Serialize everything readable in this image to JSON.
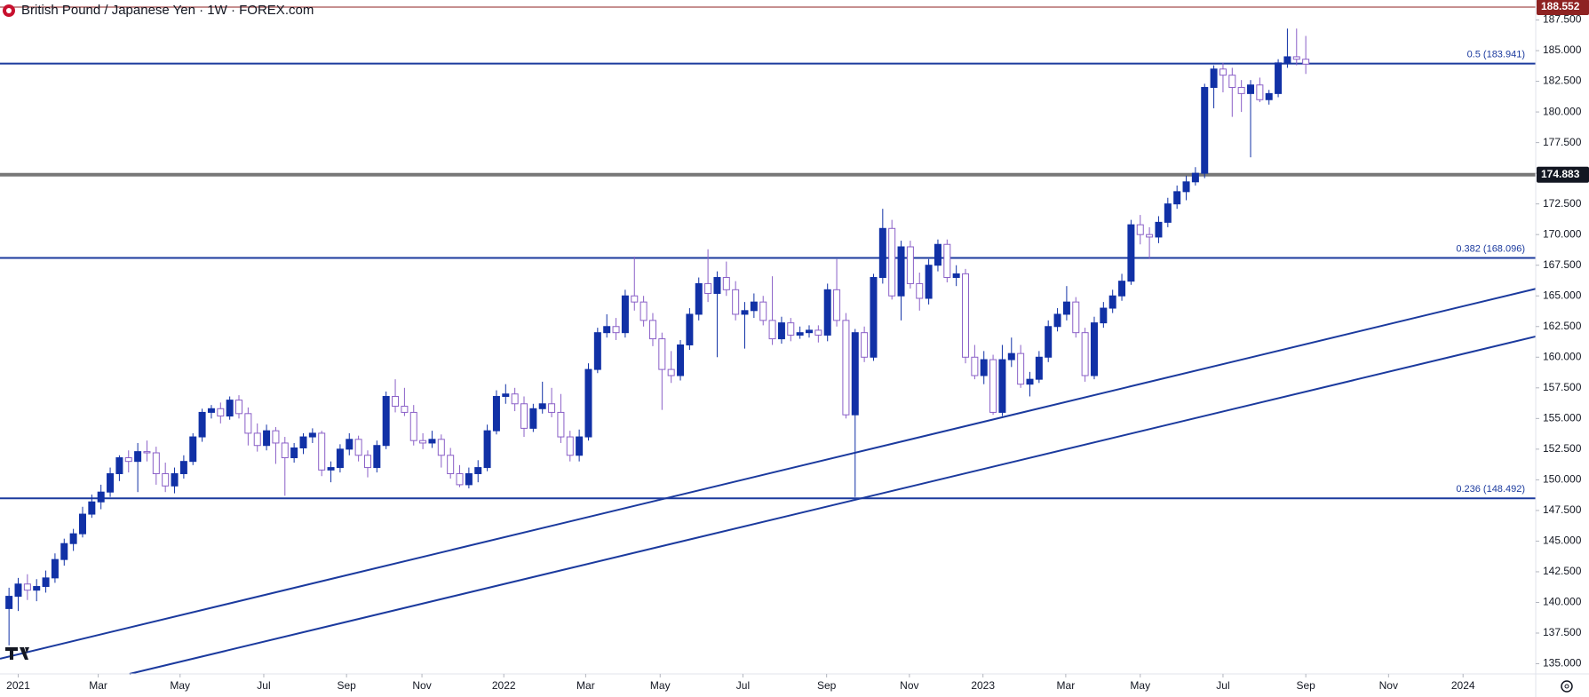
{
  "chart_data": {
    "type": "candlestick",
    "title": "British Pound / Japanese Yen · 1W · FOREX.com",
    "up_color": "#1131a6",
    "down_color": "#ffffff",
    "down_stroke": "#8a5fc7",
    "line_color": "#1b3a9e",
    "xlim": [
      -0.98,
      166.0
    ],
    "xticks": [
      {
        "value": 1,
        "label": "2021"
      },
      {
        "value": 9.7,
        "label": "Mar"
      },
      {
        "value": 18.6,
        "label": "May"
      },
      {
        "value": 27.7,
        "label": "Jul"
      },
      {
        "value": 36.7,
        "label": "Sep"
      },
      {
        "value": 44.9,
        "label": "Nov"
      },
      {
        "value": 53.8,
        "label": "2022"
      },
      {
        "value": 62.7,
        "label": "Mar"
      },
      {
        "value": 70.8,
        "label": "May"
      },
      {
        "value": 79.8,
        "label": "Jul"
      },
      {
        "value": 88.9,
        "label": "Sep"
      },
      {
        "value": 97.9,
        "label": "Nov"
      },
      {
        "value": 105.9,
        "label": "2023"
      },
      {
        "value": 114.9,
        "label": "Mar"
      },
      {
        "value": 123,
        "label": "May"
      },
      {
        "value": 132,
        "label": "Jul"
      },
      {
        "value": 141,
        "label": "Sep"
      },
      {
        "value": 150,
        "label": "Nov"
      },
      {
        "value": 158.1,
        "label": "2024"
      }
    ],
    "ylim": [
      134.17,
      189.13
    ],
    "yticks": [
      {
        "value": 135,
        "label": "135.000"
      },
      {
        "value": 137.5,
        "label": "137.500"
      },
      {
        "value": 140,
        "label": "140.000"
      },
      {
        "value": 142.5,
        "label": "142.500"
      },
      {
        "value": 145,
        "label": "145.000"
      },
      {
        "value": 147.5,
        "label": "147.500"
      },
      {
        "value": 150,
        "label": "150.000"
      },
      {
        "value": 152.5,
        "label": "152.500"
      },
      {
        "value": 155,
        "label": "155.000"
      },
      {
        "value": 157.5,
        "label": "157.500"
      },
      {
        "value": 160,
        "label": "160.000"
      },
      {
        "value": 162.5,
        "label": "162.500"
      },
      {
        "value": 165,
        "label": "165.000"
      },
      {
        "value": 167.5,
        "label": "167.500"
      },
      {
        "value": 170,
        "label": "170.000"
      },
      {
        "value": 172.5,
        "label": "172.500"
      },
      {
        "value": 175,
        "label": "175.000"
      },
      {
        "value": 177.5,
        "label": "177.500"
      },
      {
        "value": 180,
        "label": "180.000"
      },
      {
        "value": 182.5,
        "label": "182.500"
      },
      {
        "value": 185,
        "label": "185.000"
      },
      {
        "value": 187.5,
        "label": "187.500"
      }
    ],
    "levels": [
      {
        "value": 183.941,
        "label": "0.5 (183.941)"
      },
      {
        "value": 168.096,
        "label": "0.382 (168.096)"
      },
      {
        "value": 148.492,
        "label": "0.236 (148.492)"
      }
    ],
    "price_lines": [
      {
        "value": 188.552,
        "label": "188.552",
        "color": "#8e2222",
        "width": 1
      },
      {
        "value": 174.883,
        "label": "174.883",
        "color": "#777777",
        "width": 4
      }
    ],
    "trendlines": [
      {
        "x": [
          -0.98,
          166.0
        ],
        "y": [
          135.41,
          165.58
        ]
      },
      {
        "x": [
          13.1,
          166.0
        ],
        "y": [
          134.17,
          161.69
        ]
      }
    ],
    "ohlc": [
      [
        139.5,
        141.2,
        136.5,
        140.5
      ],
      [
        140.5,
        142.0,
        139.3,
        141.5
      ],
      [
        141.5,
        142.3,
        140.2,
        141.0
      ],
      [
        141.0,
        141.9,
        140.1,
        141.3
      ],
      [
        141.3,
        142.6,
        140.8,
        142.0
      ],
      [
        142.0,
        144.0,
        141.6,
        143.5
      ],
      [
        143.5,
        145.2,
        143.0,
        144.8
      ],
      [
        144.8,
        146.0,
        144.2,
        145.6
      ],
      [
        145.6,
        147.8,
        145.3,
        147.2
      ],
      [
        147.2,
        148.8,
        146.9,
        148.2
      ],
      [
        148.2,
        149.6,
        147.6,
        149.0
      ],
      [
        149.0,
        151.0,
        148.6,
        150.5
      ],
      [
        150.5,
        152.0,
        149.9,
        151.8
      ],
      [
        151.8,
        152.4,
        150.6,
        151.5
      ],
      [
        151.5,
        153.0,
        149.0,
        152.3
      ],
      [
        152.3,
        153.2,
        151.5,
        152.2
      ],
      [
        152.2,
        152.7,
        149.6,
        150.5
      ],
      [
        150.5,
        151.4,
        149.0,
        149.5
      ],
      [
        149.5,
        151.0,
        148.9,
        150.5
      ],
      [
        150.5,
        152.0,
        150.1,
        151.5
      ],
      [
        151.5,
        153.8,
        151.2,
        153.5
      ],
      [
        153.5,
        155.8,
        153.1,
        155.5
      ],
      [
        155.5,
        156.1,
        155.0,
        155.8
      ],
      [
        155.8,
        156.3,
        154.6,
        155.2
      ],
      [
        155.2,
        156.8,
        154.9,
        156.5
      ],
      [
        156.5,
        156.9,
        155.0,
        155.4
      ],
      [
        155.4,
        155.9,
        152.8,
        153.8
      ],
      [
        153.8,
        154.6,
        152.3,
        152.8
      ],
      [
        152.8,
        154.5,
        152.4,
        154.0
      ],
      [
        154.0,
        154.3,
        151.3,
        153.0
      ],
      [
        153.0,
        153.5,
        148.7,
        151.8
      ],
      [
        151.8,
        153.0,
        151.4,
        152.6
      ],
      [
        152.6,
        153.8,
        152.1,
        153.5
      ],
      [
        153.5,
        154.2,
        153.0,
        153.8
      ],
      [
        153.8,
        154.0,
        150.3,
        150.8
      ],
      [
        150.8,
        151.5,
        149.8,
        151.0
      ],
      [
        151.0,
        152.9,
        150.6,
        152.5
      ],
      [
        152.5,
        153.8,
        152.0,
        153.3
      ],
      [
        153.3,
        153.6,
        151.5,
        152.0
      ],
      [
        152.0,
        152.4,
        150.2,
        151.0
      ],
      [
        151.0,
        153.2,
        150.6,
        152.8
      ],
      [
        152.8,
        157.2,
        152.5,
        156.8
      ],
      [
        156.8,
        158.2,
        155.5,
        156.0
      ],
      [
        156.0,
        157.5,
        155.2,
        155.5
      ],
      [
        155.5,
        156.1,
        152.8,
        153.2
      ],
      [
        153.2,
        153.8,
        152.5,
        153.0
      ],
      [
        153.0,
        154.0,
        152.6,
        153.3
      ],
      [
        153.3,
        153.7,
        151.0,
        152.0
      ],
      [
        152.0,
        152.6,
        150.1,
        150.5
      ],
      [
        150.5,
        151.2,
        149.4,
        149.6
      ],
      [
        149.6,
        151.0,
        149.3,
        150.5
      ],
      [
        150.5,
        151.6,
        149.8,
        151.0
      ],
      [
        151.0,
        154.5,
        150.7,
        154.0
      ],
      [
        154.0,
        157.3,
        153.7,
        156.8
      ],
      [
        156.8,
        157.8,
        156.2,
        157.0
      ],
      [
        157.0,
        157.5,
        155.6,
        156.2
      ],
      [
        156.2,
        156.8,
        153.5,
        154.2
      ],
      [
        154.2,
        156.2,
        153.9,
        155.8
      ],
      [
        155.8,
        158.0,
        155.4,
        156.2
      ],
      [
        156.2,
        157.5,
        155.1,
        155.5
      ],
      [
        155.5,
        157.0,
        153.0,
        153.5
      ],
      [
        153.5,
        154.0,
        151.5,
        152.0
      ],
      [
        152.0,
        154.1,
        151.5,
        153.5
      ],
      [
        153.5,
        159.5,
        153.2,
        159.0
      ],
      [
        159.0,
        162.4,
        158.7,
        162.0
      ],
      [
        162.0,
        163.5,
        161.6,
        162.5
      ],
      [
        162.5,
        163.2,
        161.4,
        162.0
      ],
      [
        162.0,
        165.5,
        161.6,
        165.0
      ],
      [
        165.0,
        168.2,
        163.8,
        164.5
      ],
      [
        164.5,
        165.0,
        162.5,
        163.0
      ],
      [
        163.0,
        163.6,
        160.9,
        161.5
      ],
      [
        161.5,
        162.0,
        155.7,
        159.0
      ],
      [
        159.0,
        160.5,
        157.9,
        158.5
      ],
      [
        158.5,
        161.4,
        158.1,
        161.0
      ],
      [
        161.0,
        164.0,
        160.6,
        163.5
      ],
      [
        163.5,
        166.5,
        163.0,
        166.0
      ],
      [
        166.0,
        168.8,
        164.5,
        165.2
      ],
      [
        165.2,
        167.0,
        160.0,
        166.5
      ],
      [
        166.5,
        167.8,
        165.0,
        165.5
      ],
      [
        165.5,
        166.2,
        163.0,
        163.5
      ],
      [
        163.5,
        164.5,
        160.7,
        163.8
      ],
      [
        163.8,
        165.2,
        163.2,
        164.5
      ],
      [
        164.5,
        165.0,
        162.6,
        163.0
      ],
      [
        163.0,
        166.6,
        161.0,
        161.5
      ],
      [
        161.5,
        163.3,
        161.1,
        162.8
      ],
      [
        162.8,
        163.2,
        161.3,
        161.8
      ],
      [
        161.8,
        162.5,
        161.5,
        162.0
      ],
      [
        162.0,
        162.6,
        161.6,
        162.2
      ],
      [
        162.2,
        162.6,
        161.2,
        161.8
      ],
      [
        161.8,
        166.0,
        161.3,
        165.5
      ],
      [
        165.5,
        168.0,
        162.5,
        163.0
      ],
      [
        163.0,
        163.6,
        155.0,
        155.3
      ],
      [
        155.3,
        162.3,
        148.6,
        162.0
      ],
      [
        162.0,
        162.5,
        159.6,
        160.0
      ],
      [
        160.0,
        166.8,
        159.7,
        166.5
      ],
      [
        166.5,
        172.1,
        166.0,
        170.5
      ],
      [
        170.5,
        171.2,
        164.7,
        165.0
      ],
      [
        165.0,
        169.5,
        163.0,
        169.0
      ],
      [
        169.0,
        169.5,
        165.6,
        166.0
      ],
      [
        166.0,
        166.9,
        163.8,
        164.8
      ],
      [
        164.8,
        168.0,
        164.3,
        167.5
      ],
      [
        167.5,
        169.6,
        167.0,
        169.2
      ],
      [
        169.2,
        169.6,
        166.1,
        166.5
      ],
      [
        166.5,
        167.5,
        165.8,
        166.8
      ],
      [
        166.8,
        167.2,
        159.5,
        160.0
      ],
      [
        160.0,
        161.0,
        158.2,
        158.5
      ],
      [
        158.5,
        160.5,
        157.8,
        159.8
      ],
      [
        159.8,
        160.2,
        155.3,
        155.5
      ],
      [
        155.5,
        161.0,
        155.2,
        159.8
      ],
      [
        159.8,
        161.6,
        159.2,
        160.3
      ],
      [
        160.3,
        161.0,
        157.5,
        157.8
      ],
      [
        157.8,
        158.8,
        156.8,
        158.2
      ],
      [
        158.2,
        160.5,
        157.9,
        160.0
      ],
      [
        160.0,
        163.0,
        159.6,
        162.5
      ],
      [
        162.5,
        164.0,
        162.1,
        163.5
      ],
      [
        163.5,
        165.8,
        163.0,
        164.5
      ],
      [
        164.5,
        164.9,
        161.6,
        162.0
      ],
      [
        162.0,
        162.4,
        158.0,
        158.5
      ],
      [
        158.5,
        163.3,
        158.2,
        162.8
      ],
      [
        162.8,
        164.5,
        162.4,
        164.0
      ],
      [
        164.0,
        165.5,
        163.6,
        165.0
      ],
      [
        165.0,
        166.8,
        164.6,
        166.2
      ],
      [
        166.2,
        171.2,
        165.9,
        170.8
      ],
      [
        170.8,
        171.6,
        169.2,
        170.0
      ],
      [
        170.0,
        170.6,
        168.0,
        169.8
      ],
      [
        169.8,
        171.5,
        169.3,
        171.0
      ],
      [
        171.0,
        173.0,
        170.6,
        172.5
      ],
      [
        172.5,
        174.0,
        172.1,
        173.5
      ],
      [
        173.5,
        174.8,
        172.8,
        174.3
      ],
      [
        174.3,
        175.5,
        174.0,
        175.0
      ],
      [
        175.0,
        182.3,
        174.6,
        182.0
      ],
      [
        182.0,
        183.8,
        180.3,
        183.5
      ],
      [
        183.5,
        184.0,
        181.6,
        183.0
      ],
      [
        183.0,
        183.6,
        179.6,
        182.0
      ],
      [
        182.0,
        182.6,
        180.0,
        181.5
      ],
      [
        181.5,
        182.6,
        176.3,
        182.2
      ],
      [
        182.2,
        182.8,
        180.8,
        181.0
      ],
      [
        181.0,
        181.8,
        180.6,
        181.5
      ],
      [
        181.5,
        184.3,
        181.2,
        184.0
      ],
      [
        184.0,
        186.8,
        183.6,
        184.5
      ],
      [
        184.5,
        186.8,
        183.8,
        184.3
      ],
      [
        184.3,
        186.2,
        183.1,
        183.9
      ]
    ]
  }
}
